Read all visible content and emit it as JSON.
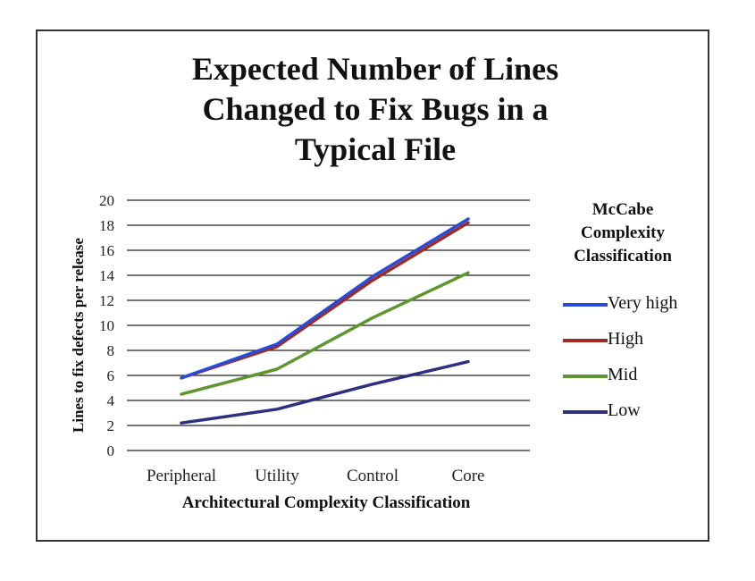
{
  "chart_data": {
    "type": "line",
    "title_lines": [
      "Expected Number of Lines",
      "Changed to Fix Bugs in a",
      "Typical File"
    ],
    "xlabel": "Architectural Complexity Classification",
    "ylabel": "Lines to fix defects per release",
    "categories": [
      "Peripheral",
      "Utility",
      "Control",
      "Core"
    ],
    "ylim": [
      0,
      20
    ],
    "yticks": [
      0,
      2,
      4,
      6,
      8,
      10,
      12,
      14,
      16,
      18,
      20
    ],
    "grid": true,
    "legend_title_lines": [
      "McCabe",
      "Complexity",
      "Classification"
    ],
    "legend_position": "right",
    "series": [
      {
        "name": "Very high",
        "color": "#2a4bd7",
        "values": [
          5.8,
          8.5,
          13.9,
          18.5
        ]
      },
      {
        "name": "High",
        "color": "#9e2b25",
        "values": [
          5.8,
          8.3,
          13.6,
          18.2
        ]
      },
      {
        "name": "Mid",
        "color": "#5e9630",
        "values": [
          4.5,
          6.5,
          10.6,
          14.2
        ]
      },
      {
        "name": "Low",
        "color": "#2d2f80",
        "values": [
          2.2,
          3.3,
          5.3,
          7.1
        ]
      }
    ]
  }
}
